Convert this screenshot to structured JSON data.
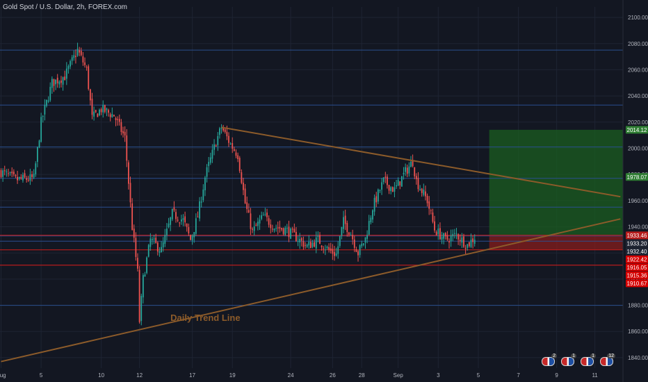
{
  "header": {
    "title": "Gold Spot / U.S. Dollar, 2h, FOREX.com"
  },
  "colors": {
    "background": "#131722",
    "up": "#26a69a",
    "down": "#ef5350",
    "grid": "#1e2433",
    "hline_blue": "#2a4f8f",
    "hline_red": "#b71c1c",
    "trendline": "#8c5b2a",
    "target_zone": "#1b5e20",
    "stop_zone": "#7f1d1d"
  },
  "chart_data": {
    "type": "candlestick",
    "ylim": [
      1832,
      2108
    ],
    "price_ticks": [
      "2100.00",
      "2080.00",
      "2060.00",
      "2040.00",
      "2020.00",
      "2000.00",
      "1980.00",
      "1960.00",
      "1940.00",
      "1920.00",
      "1900.00",
      "1880.00",
      "1860.00",
      "1840.00"
    ],
    "price_tick_values": [
      2100,
      2080,
      2060,
      2040,
      2020,
      2000,
      1980,
      1960,
      1940,
      1920,
      1900,
      1880,
      1860,
      1840
    ],
    "time_ticks": [
      "Aug",
      "5",
      "10",
      "12",
      "17",
      "19",
      "24",
      "26",
      "28",
      "Sep",
      "3",
      "5",
      "7",
      "9",
      "11"
    ],
    "time_tick_index": [
      0,
      22,
      55,
      76,
      105,
      127,
      159,
      182,
      198,
      218,
      240,
      262,
      284,
      305,
      326
    ],
    "horizontal_levels_blue": [
      2075,
      2033,
      2001,
      1977,
      1955,
      1933,
      1929,
      1880
    ],
    "horizontal_levels_red": [
      1933.5,
      1922.4,
      1910.7
    ],
    "trendlines": [
      {
        "name": "upper",
        "from": [
          121,
          2016
        ],
        "to": [
          340,
          1963
        ]
      },
      {
        "name": "lower",
        "from": [
          0,
          1837
        ],
        "to": [
          340,
          1946
        ]
      }
    ],
    "position": {
      "from_index": 268,
      "to_index": 340,
      "target": 2014.12,
      "entry": 1933.46,
      "stop": 1922.42
    },
    "price_tags": [
      {
        "label": "2014.12",
        "value": 2014.12,
        "color": "#2e7d32"
      },
      {
        "label": "1978.07",
        "value": 1978.07,
        "color": "#2e7d32"
      },
      {
        "label": "1933.46",
        "value": 1933.46,
        "color": "#b71c1c"
      },
      {
        "label": "1933.20",
        "value": 1933.2,
        "color": "#1e2433"
      },
      {
        "label": "1932.40",
        "value": 1932.4,
        "color": "#1e2433"
      },
      {
        "label": "1922.42",
        "value": 1922.42,
        "color": "#d50000"
      },
      {
        "label": "1916.05",
        "value": 1916.05,
        "color": "#d50000"
      },
      {
        "label": "1915.36",
        "value": 1915.36,
        "color": "#d50000"
      },
      {
        "label": "1910.67",
        "value": 1910.67,
        "color": "#d50000"
      }
    ],
    "annotations": [
      {
        "text": "Daily Trend Line",
        "index": 93,
        "value": 1868
      }
    ],
    "waypoints": [
      [
        0,
        1982
      ],
      [
        8,
        1976
      ],
      [
        18,
        1977
      ],
      [
        22,
        2020
      ],
      [
        28,
        2050
      ],
      [
        35,
        2055
      ],
      [
        42,
        2075
      ],
      [
        47,
        2060
      ],
      [
        50,
        2023
      ],
      [
        55,
        2030
      ],
      [
        62,
        2025
      ],
      [
        68,
        2008
      ],
      [
        72,
        1940
      ],
      [
        75,
        1905
      ],
      [
        76,
        1868
      ],
      [
        78,
        1900
      ],
      [
        82,
        1930
      ],
      [
        88,
        1922
      ],
      [
        94,
        1950
      ],
      [
        100,
        1945
      ],
      [
        104,
        1930
      ],
      [
        108,
        1948
      ],
      [
        112,
        1978
      ],
      [
        118,
        2005
      ],
      [
        121,
        2016
      ],
      [
        126,
        2003
      ],
      [
        130,
        1995
      ],
      [
        134,
        1958
      ],
      [
        138,
        1936
      ],
      [
        144,
        1948
      ],
      [
        150,
        1940
      ],
      [
        156,
        1938
      ],
      [
        162,
        1932
      ],
      [
        168,
        1925
      ],
      [
        174,
        1930
      ],
      [
        180,
        1922
      ],
      [
        184,
        1919
      ],
      [
        188,
        1944
      ],
      [
        192,
        1935
      ],
      [
        196,
        1920
      ],
      [
        200,
        1931
      ],
      [
        204,
        1955
      ],
      [
        210,
        1975
      ],
      [
        216,
        1968
      ],
      [
        222,
        1982
      ],
      [
        226,
        1990
      ],
      [
        228,
        1975
      ],
      [
        234,
        1960
      ],
      [
        238,
        1938
      ],
      [
        244,
        1930
      ],
      [
        250,
        1934
      ],
      [
        256,
        1926
      ],
      [
        260,
        1932
      ]
    ],
    "flags": [
      {
        "count": "2"
      },
      {
        "count": "1"
      },
      {
        "count": "1"
      },
      {
        "count": "12"
      }
    ]
  }
}
